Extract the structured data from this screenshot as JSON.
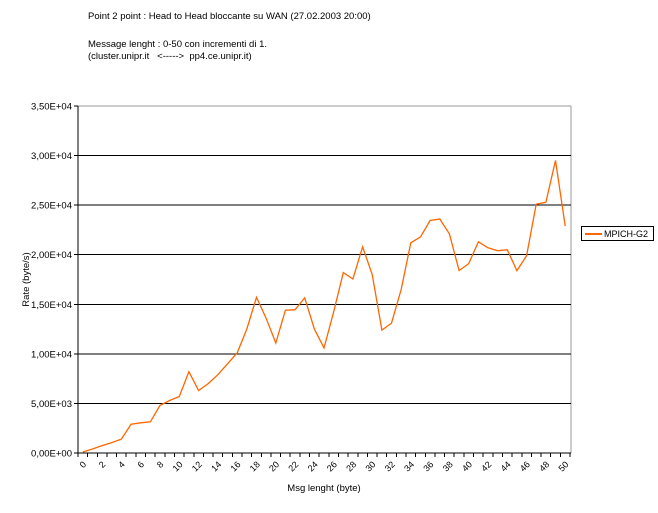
{
  "header": {
    "title": "Point 2 point : Head to Head bloccante su WAN (27.02.2003 20:00)",
    "subtitle_line1": "Message lenght : 0-50 con incrementi di 1.",
    "subtitle_line2": "(cluster.unipr.it   <----->  pp4.ce.unipr.it)"
  },
  "legend": {
    "series_label": "MPICH-G2",
    "position": "right"
  },
  "colors": {
    "series": "#FF6600",
    "gridline": "#000000",
    "axis": "#000000",
    "plot_border": "#999999",
    "background": "#FFFFFF",
    "text": "#000000"
  },
  "chart_data": {
    "type": "line",
    "title": "Point 2 point : Head to Head bloccante su WAN (27.02.2003 20:00)",
    "subtitle": "Message lenght : 0-50 con incrementi di 1. (cluster.unipr.it <-----> pp4.ce.unipr.it)",
    "xlabel": "Msg lenght (byte)",
    "ylabel": "Rate (byte/s)",
    "grid": "horizontal",
    "legend_position": "right",
    "ylim": [
      0,
      35000
    ],
    "y_ticks": [
      0,
      5000,
      10000,
      15000,
      20000,
      25000,
      30000,
      35000
    ],
    "y_tick_labels": [
      "0,00E+00",
      "5,00E+03",
      "1,00E+04",
      "1,50E+04",
      "2,00E+04",
      "2,50E+04",
      "3,00E+04",
      "3,50E+04"
    ],
    "x_tick_labels": [
      "0",
      "2",
      "4",
      "6",
      "8",
      "10",
      "12",
      "14",
      "16",
      "18",
      "20",
      "22",
      "24",
      "26",
      "28",
      "30",
      "32",
      "34",
      "36",
      "38",
      "40",
      "42",
      "44",
      "46",
      "48",
      "50"
    ],
    "x": [
      0,
      1,
      2,
      3,
      4,
      5,
      6,
      7,
      8,
      9,
      10,
      11,
      12,
      13,
      14,
      15,
      16,
      17,
      18,
      19,
      20,
      21,
      22,
      23,
      24,
      25,
      26,
      27,
      28,
      29,
      30,
      31,
      32,
      33,
      34,
      35,
      36,
      37,
      38,
      39,
      40,
      41,
      42,
      43,
      44,
      45,
      46,
      47,
      48,
      49,
      50
    ],
    "series": [
      {
        "name": "MPICH-G2",
        "values": [
          100,
          400,
          750,
          1050,
          1400,
          2900,
          3050,
          3150,
          4800,
          5300,
          5700,
          8200,
          6300,
          7000,
          7900,
          9000,
          10100,
          12500,
          15700,
          13600,
          11100,
          14400,
          14450,
          15650,
          12500,
          10600,
          14200,
          18200,
          17550,
          20800,
          18000,
          12400,
          13100,
          16500,
          21200,
          21800,
          23450,
          23600,
          22100,
          18400,
          19100,
          21300,
          20700,
          20400,
          20500,
          18400,
          19900,
          25100,
          25300,
          29500,
          22900
        ]
      }
    ]
  }
}
